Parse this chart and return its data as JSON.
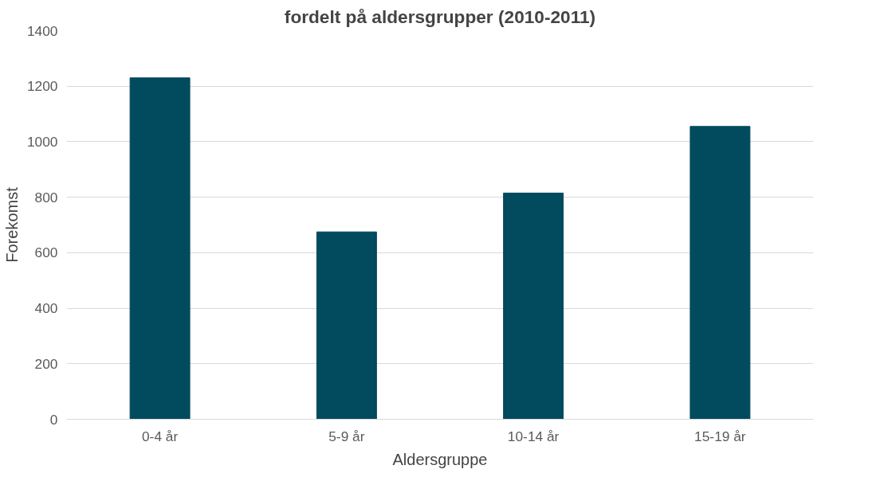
{
  "chart_data": {
    "type": "bar",
    "title": "fordelt på aldersgrupper (2010-2011)",
    "xlabel": "Aldersgruppe",
    "ylabel": "Forekomst",
    "categories": [
      "0-4 år",
      "5-9 år",
      "10-14 år",
      "15-19 år"
    ],
    "values": [
      1230,
      675,
      815,
      1055
    ],
    "color": "#024a5e",
    "ylim": [
      0,
      1400
    ],
    "yticks": [
      0,
      200,
      400,
      600,
      800,
      1000,
      1200,
      1400
    ],
    "grid": "y"
  }
}
